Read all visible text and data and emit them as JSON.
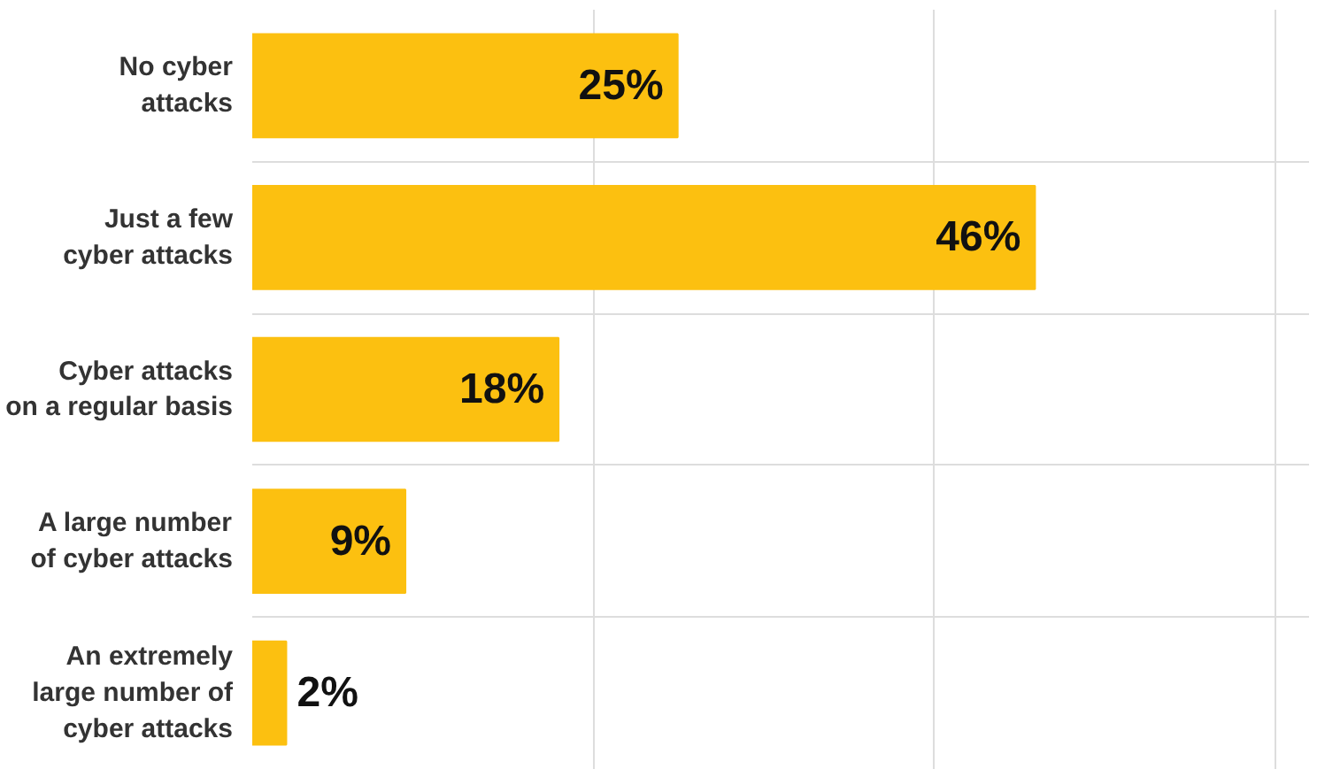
{
  "chart_data": {
    "type": "bar",
    "orientation": "horizontal",
    "categories": [
      "No cyber\nattacks",
      "Just a few\ncyber attacks",
      "Cyber attacks\non a regular basis",
      "A large number\nof cyber attacks",
      "An extremely\nlarge number of\ncyber attacks"
    ],
    "values": [
      25,
      46,
      18,
      9,
      2
    ],
    "color": "#fcc010",
    "value_labels": [
      "25%",
      "46%",
      "18%",
      "9%",
      "2%"
    ],
    "grid": true,
    "tick_labels": "y"
  }
}
